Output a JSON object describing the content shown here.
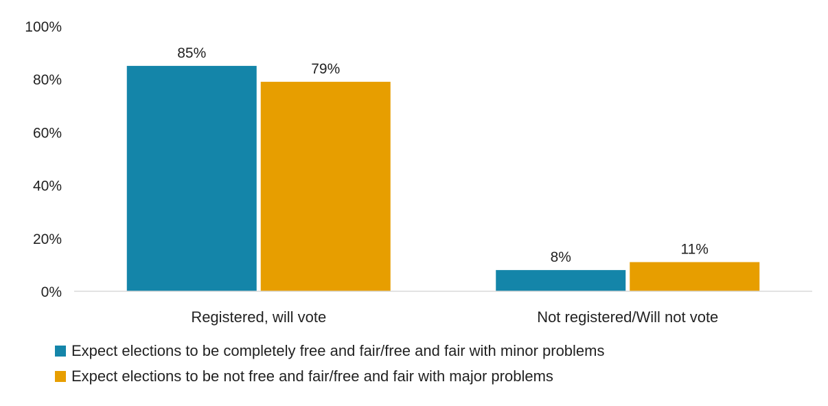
{
  "chart_data": {
    "type": "bar",
    "categories": [
      "Registered, will vote",
      "Not registered/Will not vote"
    ],
    "series": [
      {
        "name": "Expect elections to be completely free and fair/free and fair with minor problems",
        "values": [
          85,
          8
        ],
        "color": "#1485A9"
      },
      {
        "name": "Expect elections to be not free and fair/free and fair with major problems",
        "values": [
          79,
          11
        ],
        "color": "#E79E00"
      }
    ],
    "data_labels": [
      [
        "85%",
        "8%"
      ],
      [
        "79%",
        "11%"
      ]
    ],
    "ylim": [
      0,
      100
    ],
    "y_ticks": [
      0,
      20,
      40,
      60,
      80,
      100
    ],
    "y_tick_labels": [
      "0%",
      "20%",
      "40%",
      "60%",
      "80%",
      "100%"
    ],
    "title": "",
    "xlabel": "",
    "ylabel": "",
    "grid": false,
    "legend_position": "bottom"
  }
}
